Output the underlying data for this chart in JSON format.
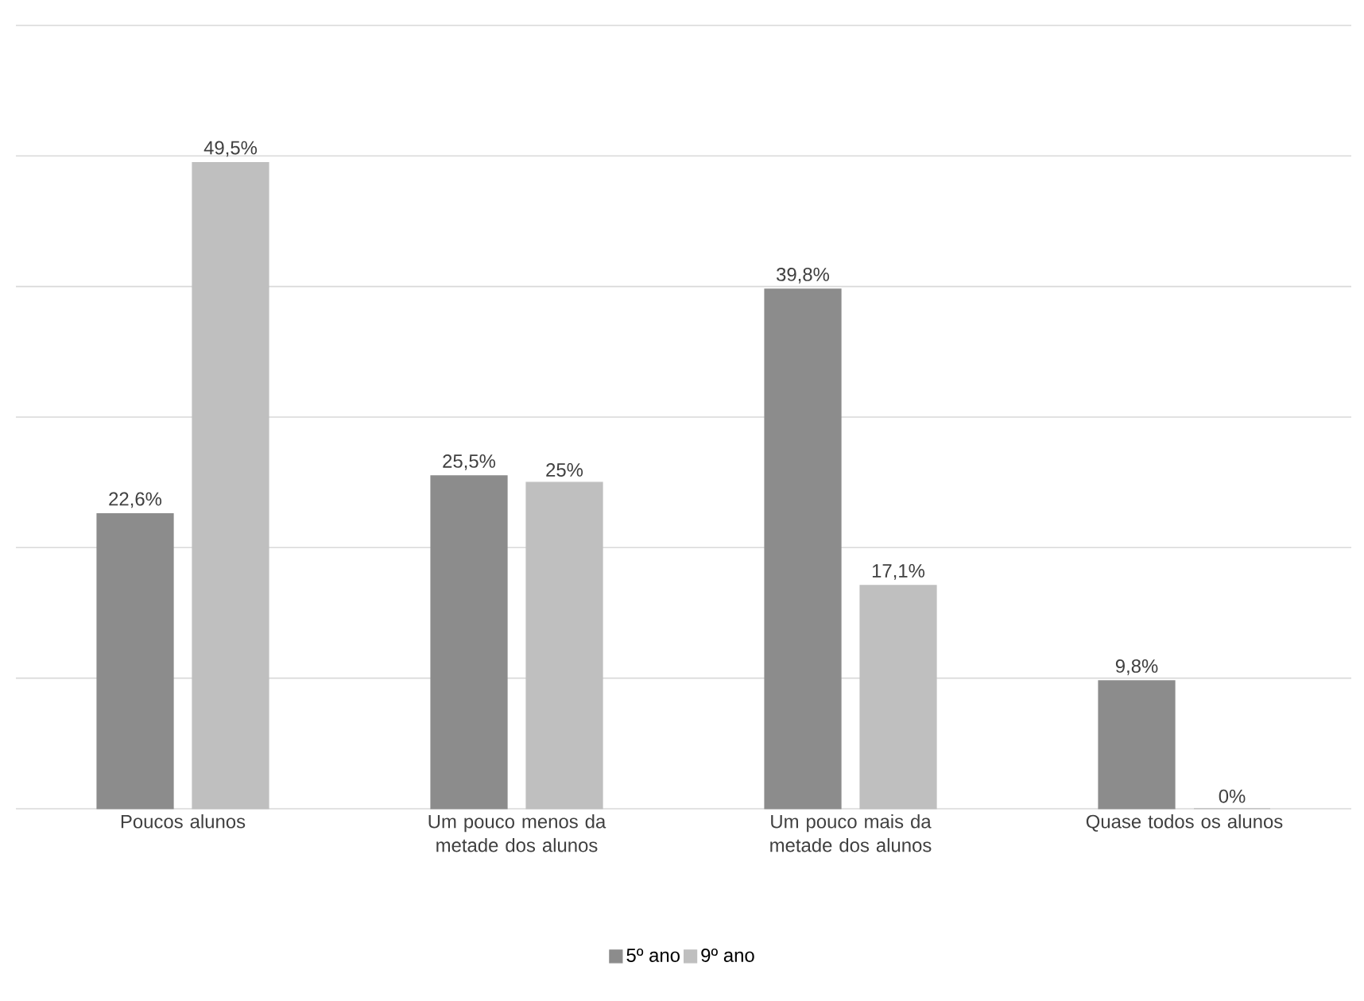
{
  "chart_data": {
    "type": "bar",
    "categories": [
      "Poucos alunos",
      "Um pouco menos da metade dos alunos",
      "Um pouco mais da metade dos alunos",
      "Quase todos os alunos"
    ],
    "series": [
      {
        "name": "5º ano",
        "color": "#8c8c8c",
        "values": [
          22.6,
          25.5,
          39.8,
          9.8
        ],
        "value_labels": [
          "22,6%",
          "25,5%",
          "39,8%",
          "9,8%"
        ]
      },
      {
        "name": "9º ano",
        "color": "#bfbfbf",
        "values": [
          49.5,
          25,
          17.1,
          0
        ],
        "value_labels": [
          "49,5%",
          "25%",
          "17,1%",
          "0%"
        ]
      }
    ],
    "ylim": [
      0,
      60
    ],
    "yticks": [
      {
        "value": 0,
        "label": null
      },
      {
        "value": 10,
        "label": null
      },
      {
        "value": 20,
        "label": null
      },
      {
        "value": 30,
        "label": null
      },
      {
        "value": 40,
        "label": null
      },
      {
        "value": 50,
        "label": null
      },
      {
        "value": 60,
        "label": null
      }
    ],
    "tick_labels": "x",
    "grid": "y",
    "legend": "bottom"
  }
}
